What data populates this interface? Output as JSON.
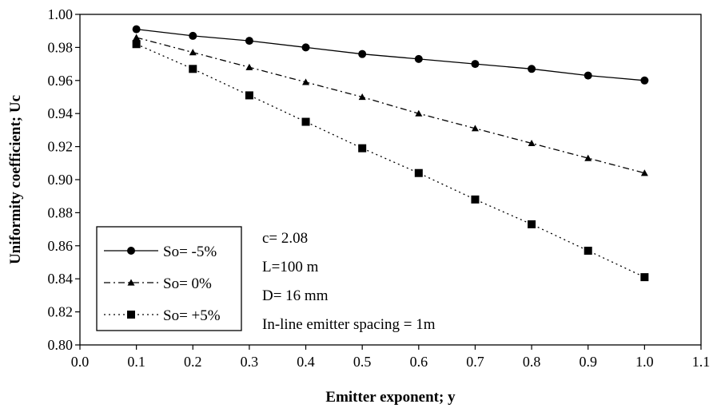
{
  "chart_data": {
    "type": "line",
    "title": "",
    "xlabel": "Emitter exponent; y",
    "ylabel": "Uniformity coefficient; Uc",
    "xlim": [
      0.0,
      1.1
    ],
    "ylim": [
      0.8,
      1.0
    ],
    "x_ticks": [
      "0.0",
      "0.1",
      "0.2",
      "0.3",
      "0.4",
      "0.5",
      "0.6",
      "0.7",
      "0.8",
      "0.9",
      "1.0",
      "1.1"
    ],
    "y_ticks": [
      "0.80",
      "0.82",
      "0.84",
      "0.86",
      "0.88",
      "0.90",
      "0.92",
      "0.94",
      "0.96",
      "0.98",
      "1.00"
    ],
    "grid": false,
    "legend_position": "bottom-left",
    "x": [
      0.1,
      0.2,
      0.3,
      0.4,
      0.5,
      0.6,
      0.7,
      0.8,
      0.9,
      1.0
    ],
    "series": [
      {
        "name": "So= -5%",
        "marker": "circle",
        "line_style": "solid",
        "values": [
          0.991,
          0.987,
          0.984,
          0.98,
          0.976,
          0.973,
          0.97,
          0.967,
          0.963,
          0.96
        ]
      },
      {
        "name": "So= 0%",
        "marker": "triangle",
        "line_style": "dash-dot",
        "values": [
          0.986,
          0.977,
          0.968,
          0.959,
          0.95,
          0.94,
          0.931,
          0.922,
          0.913,
          0.904
        ]
      },
      {
        "name": "So= +5%",
        "marker": "square",
        "line_style": "dotted",
        "values": [
          0.982,
          0.967,
          0.951,
          0.935,
          0.919,
          0.904,
          0.888,
          0.873,
          0.857,
          0.841
        ]
      }
    ],
    "annotations": [
      "c= 2.08",
      "L=100 m",
      "D= 16 mm",
      "In-line emitter spacing = 1m"
    ]
  }
}
